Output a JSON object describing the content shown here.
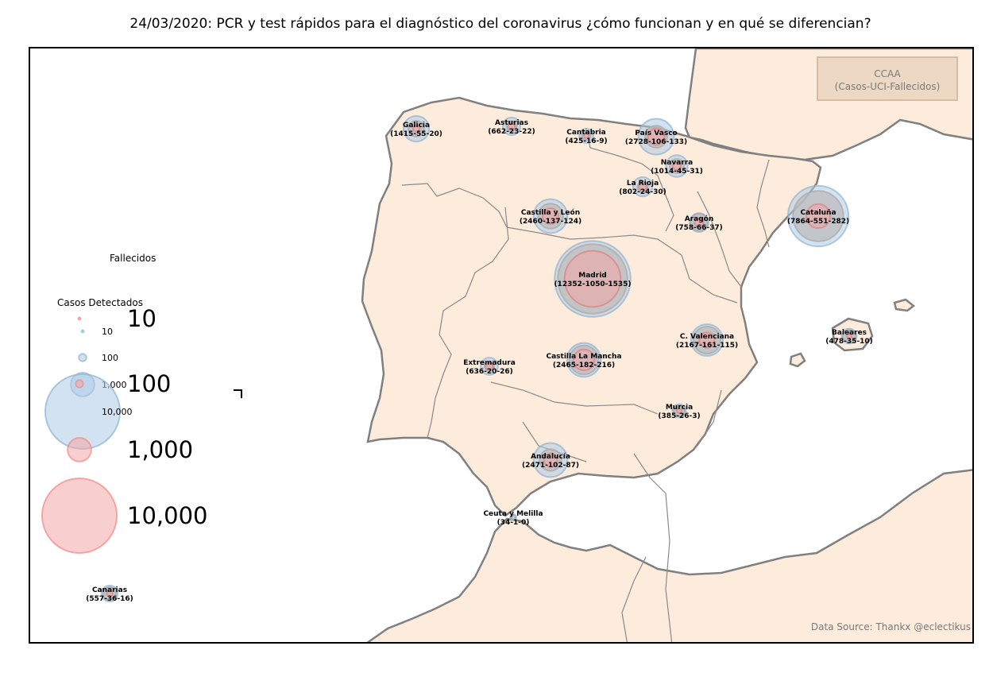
{
  "title": "24/03/2020: PCR y test rápidos para el diagnóstico del coronavirus ¿cómo funcionan y en qué se diferencian?",
  "legend_box": {
    "line1": "CCAA",
    "line2": "(Casos-UCI-Fallecidos)"
  },
  "source": "Data Source: Thankx @eclectikus",
  "colors": {
    "land": "#fdebdb",
    "coast": "#808080",
    "border": "#8a8a8a",
    "cases": "#aecbe6",
    "icu": "#bcbcbc",
    "deaths": "#f4a5a5"
  },
  "legend": {
    "deaths_title": "Fallecidos",
    "cases_title": "Casos Detectados",
    "cases_sizes": [
      {
        "value": 10,
        "label": "10"
      },
      {
        "value": 100,
        "label": "100"
      },
      {
        "value": 1000,
        "label": "1,000"
      },
      {
        "value": 10000,
        "label": "10,000"
      }
    ],
    "deaths_sizes": [
      {
        "value": 10,
        "label": "10"
      },
      {
        "value": 100,
        "label": "100"
      },
      {
        "value": 1000,
        "label": "1,000"
      },
      {
        "value": 10000,
        "label": "10,000"
      }
    ]
  },
  "regions": [
    {
      "name": "Galicia",
      "stats": "(1415-55-20)",
      "cases": 1415,
      "icu": 55,
      "deaths": 20
    },
    {
      "name": "Asturias",
      "stats": "(662-23-22)",
      "cases": 662,
      "icu": 23,
      "deaths": 22
    },
    {
      "name": "Cantabria",
      "stats": "(425-16-9)",
      "cases": 425,
      "icu": 16,
      "deaths": 9
    },
    {
      "name": "País Vasco",
      "stats": "(2728-106-133)",
      "cases": 2728,
      "icu": 106,
      "deaths": 133
    },
    {
      "name": "Navarra",
      "stats": "(1014-45-31)",
      "cases": 1014,
      "icu": 45,
      "deaths": 31
    },
    {
      "name": "La Rioja",
      "stats": "(802-24-30)",
      "cases": 802,
      "icu": 24,
      "deaths": 30
    },
    {
      "name": "Castilla y León",
      "stats": "(2460-137-124)",
      "cases": 2460,
      "icu": 137,
      "deaths": 124
    },
    {
      "name": "Aragón",
      "stats": "(758-66-37)",
      "cases": 758,
      "icu": 66,
      "deaths": 37
    },
    {
      "name": "Cataluña",
      "stats": "(7864-551-282)",
      "cases": 7864,
      "icu": 551,
      "deaths": 282
    },
    {
      "name": "Madrid",
      "stats": "(12352-1050-1535)",
      "cases": 12352,
      "icu": 1050,
      "deaths": 1535
    },
    {
      "name": "Baleares",
      "stats": "(478-35-10)",
      "cases": 478,
      "icu": 35,
      "deaths": 10
    },
    {
      "name": "C. Valenciana",
      "stats": "(2167-161-115)",
      "cases": 2167,
      "icu": 161,
      "deaths": 115
    },
    {
      "name": "Extremadura",
      "stats": "(636-20-26)",
      "cases": 636,
      "icu": 20,
      "deaths": 26
    },
    {
      "name": "Castilla La Mancha",
      "stats": "(2465-182-216)",
      "cases": 2465,
      "icu": 182,
      "deaths": 216
    },
    {
      "name": "Murcia",
      "stats": "(385-26-3)",
      "cases": 385,
      "icu": 26,
      "deaths": 3
    },
    {
      "name": "Andalucía",
      "stats": "(2471-102-87)",
      "cases": 2471,
      "icu": 102,
      "deaths": 87
    },
    {
      "name": "Ceuta y Melilla",
      "stats": "(34-1-0)",
      "cases": 34,
      "icu": 1,
      "deaths": 0
    },
    {
      "name": "Canarias",
      "stats": "(557-36-16)",
      "cases": 557,
      "icu": 36,
      "deaths": 16
    }
  ]
}
